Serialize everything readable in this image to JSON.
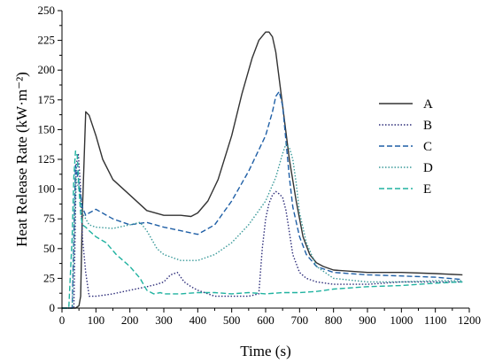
{
  "chart_data": {
    "type": "line",
    "title": "",
    "xlabel": "Time (s)",
    "ylabel": "Heat Release Rate (kW·m⁻²)",
    "xlim": [
      0,
      1200
    ],
    "ylim": [
      0,
      250
    ],
    "xticks": [
      0,
      100,
      200,
      300,
      400,
      500,
      600,
      700,
      800,
      900,
      1000,
      1100,
      1200
    ],
    "yticks": [
      0,
      25,
      50,
      75,
      100,
      125,
      150,
      175,
      200,
      225,
      250
    ],
    "grid": false,
    "legend": "right",
    "series": [
      {
        "name": "A",
        "color": "#333333",
        "dash": "solid",
        "x": [
          0,
          40,
          50,
          55,
          60,
          70,
          80,
          100,
          120,
          150,
          200,
          250,
          300,
          350,
          380,
          400,
          430,
          460,
          500,
          530,
          560,
          580,
          600,
          610,
          620,
          630,
          650,
          670,
          690,
          710,
          730,
          750,
          770,
          800,
          900,
          1000,
          1100,
          1180
        ],
        "y": [
          0,
          0,
          2,
          10,
          80,
          165,
          162,
          145,
          125,
          108,
          95,
          82,
          78,
          78,
          77,
          80,
          90,
          108,
          145,
          180,
          210,
          225,
          232,
          232,
          228,
          215,
          170,
          125,
          90,
          60,
          45,
          38,
          35,
          32,
          30,
          30,
          29,
          28
        ]
      },
      {
        "name": "B",
        "color": "#2e2e7a",
        "dash": "dotted",
        "x": [
          0,
          35,
          42,
          48,
          55,
          60,
          70,
          80,
          100,
          150,
          200,
          250,
          280,
          300,
          320,
          340,
          360,
          380,
          400,
          450,
          500,
          550,
          580,
          590,
          600,
          610,
          620,
          630,
          640,
          650,
          660,
          680,
          700,
          720,
          750,
          800,
          900,
          1000,
          1100,
          1180
        ],
        "y": [
          0,
          0,
          120,
          130,
          100,
          60,
          30,
          10,
          10,
          12,
          15,
          18,
          20,
          22,
          28,
          30,
          22,
          18,
          15,
          10,
          10,
          10,
          12,
          50,
          75,
          88,
          95,
          98,
          96,
          93,
          82,
          45,
          30,
          25,
          22,
          20,
          20,
          22,
          22,
          22
        ]
      },
      {
        "name": "C",
        "color": "#1f5fa6",
        "dash": "dashed",
        "x": [
          0,
          30,
          40,
          50,
          60,
          70,
          80,
          100,
          150,
          200,
          250,
          300,
          350,
          400,
          450,
          500,
          550,
          600,
          620,
          630,
          640,
          650,
          660,
          670,
          680,
          700,
          720,
          750,
          800,
          900,
          1000,
          1100,
          1180
        ],
        "y": [
          0,
          0,
          120,
          105,
          85,
          78,
          80,
          83,
          75,
          70,
          72,
          68,
          65,
          62,
          70,
          90,
          115,
          145,
          165,
          178,
          182,
          170,
          140,
          110,
          85,
          60,
          45,
          35,
          30,
          28,
          27,
          26,
          24
        ]
      },
      {
        "name": "D",
        "color": "#3a9a9a",
        "dash": "dotted",
        "x": [
          0,
          30,
          40,
          50,
          60,
          70,
          80,
          100,
          150,
          200,
          230,
          250,
          280,
          300,
          350,
          400,
          450,
          500,
          550,
          600,
          630,
          650,
          660,
          670,
          680,
          690,
          700,
          720,
          750,
          800,
          900,
          1000,
          1100,
          1180
        ],
        "y": [
          0,
          0,
          110,
          100,
          80,
          75,
          70,
          68,
          67,
          70,
          72,
          65,
          50,
          45,
          40,
          40,
          45,
          55,
          70,
          90,
          110,
          130,
          138,
          135,
          125,
          105,
          80,
          55,
          35,
          25,
          22,
          22,
          23,
          23
        ]
      },
      {
        "name": "E",
        "color": "#20b2a0",
        "dash": "dashed",
        "x": [
          0,
          20,
          30,
          35,
          40,
          45,
          50,
          55,
          60,
          70,
          80,
          100,
          130,
          160,
          200,
          230,
          250,
          270,
          290,
          300,
          350,
          400,
          450,
          500,
          550,
          600,
          650,
          700,
          750,
          800,
          900,
          1000,
          1100,
          1180
        ],
        "y": [
          0,
          0,
          60,
          110,
          132,
          128,
          100,
          80,
          70,
          68,
          65,
          60,
          55,
          45,
          35,
          25,
          15,
          12,
          13,
          12,
          12,
          13,
          13,
          12,
          13,
          12,
          13,
          13,
          14,
          16,
          18,
          19,
          21,
          22
        ]
      }
    ]
  }
}
